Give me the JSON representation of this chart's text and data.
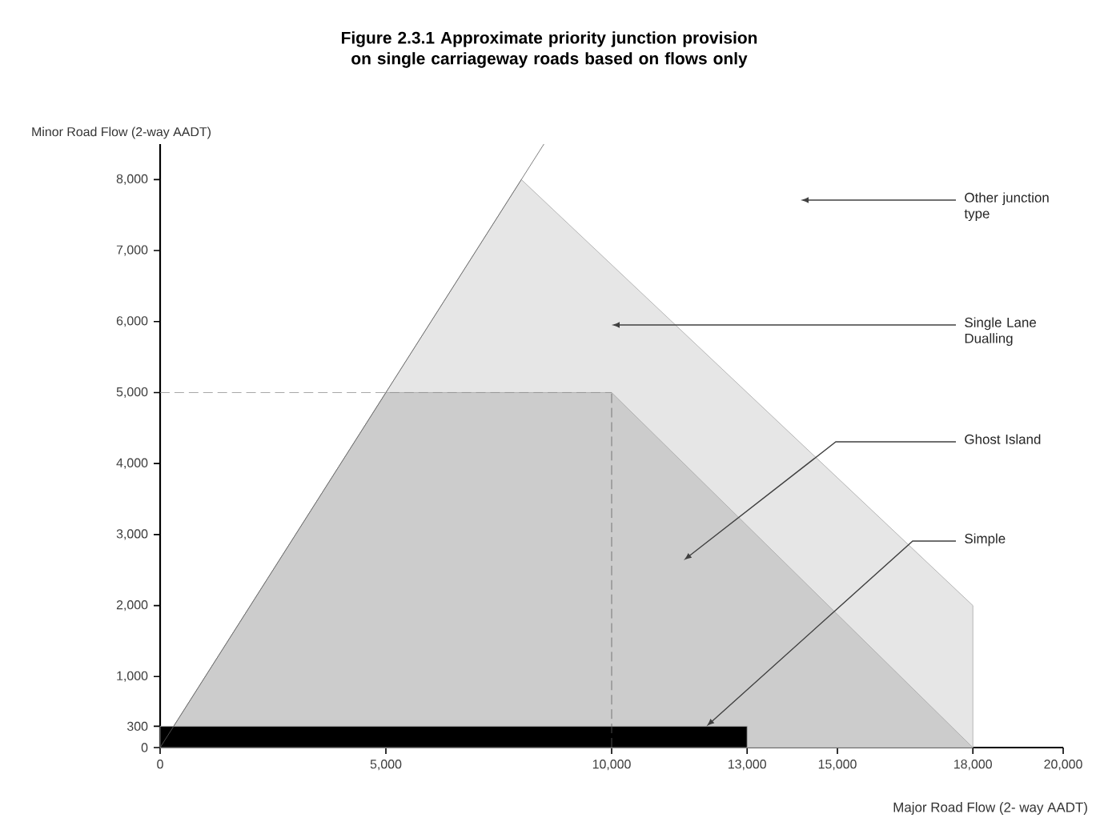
{
  "chart_data": {
    "type": "area",
    "title": "Figure 2.3.1 Approximate priority junction provision on single carriageway roads based on flows only",
    "xlabel": "Major Road Flow (2- way AADT)",
    "ylabel": "Minor Road Flow (2-way AADT)",
    "xlim": [
      0,
      20000
    ],
    "ylim": [
      0,
      8500
    ],
    "xticks": [
      0,
      {
        "value": 5000,
        "label": "5,000"
      },
      {
        "value": 10000,
        "label": "10,000"
      },
      {
        "value": 13000,
        "label": "13,000"
      },
      {
        "value": 15000,
        "label": "15,000"
      },
      {
        "value": 18000,
        "label": "18,000"
      },
      {
        "value": 20000,
        "label": "20,000"
      }
    ],
    "yticks": [
      0,
      300,
      {
        "value": 1000,
        "label": "1,000"
      },
      {
        "value": 2000,
        "label": "2,000"
      },
      {
        "value": 3000,
        "label": "3,000"
      },
      {
        "value": 4000,
        "label": "4,000"
      },
      {
        "value": 5000,
        "label": "5,000"
      },
      {
        "value": 6000,
        "label": "6,000"
      },
      {
        "value": 7000,
        "label": "7,000"
      },
      {
        "value": 8000,
        "label": "8,000"
      }
    ],
    "series": [
      {
        "color": "#e6e6e6",
        "x": [
          0,
          8000,
          18000,
          18000
        ],
        "values": [
          0,
          8000,
          2000,
          0
        ]
      },
      {
        "color": "#cccccc",
        "x": [
          0,
          5000,
          10000,
          18000
        ],
        "values": [
          0,
          5000,
          5000,
          0
        ]
      },
      {
        "color": "#000000",
        "x": [
          0,
          13000
        ],
        "values": [
          300,
          300
        ]
      },
      {
        "type": "line",
        "color": "#606060",
        "x": [
          0,
          8500
        ],
        "values": [
          0,
          8500
        ]
      }
    ],
    "ref_lines": [
      {
        "axis": "y",
        "value": 5000,
        "color": "#909090",
        "line_style": "dashed"
      },
      {
        "axis": "x",
        "value": 10000,
        "color": "#606060",
        "line_style": "dashed"
      }
    ],
    "annotations": [
      "Other junction type",
      "Single Lane Dualling",
      "Ghost Island",
      {
        "text": "Simple",
        "x": 12100,
        "y": 300
      }
    ],
    "grid": false
  }
}
